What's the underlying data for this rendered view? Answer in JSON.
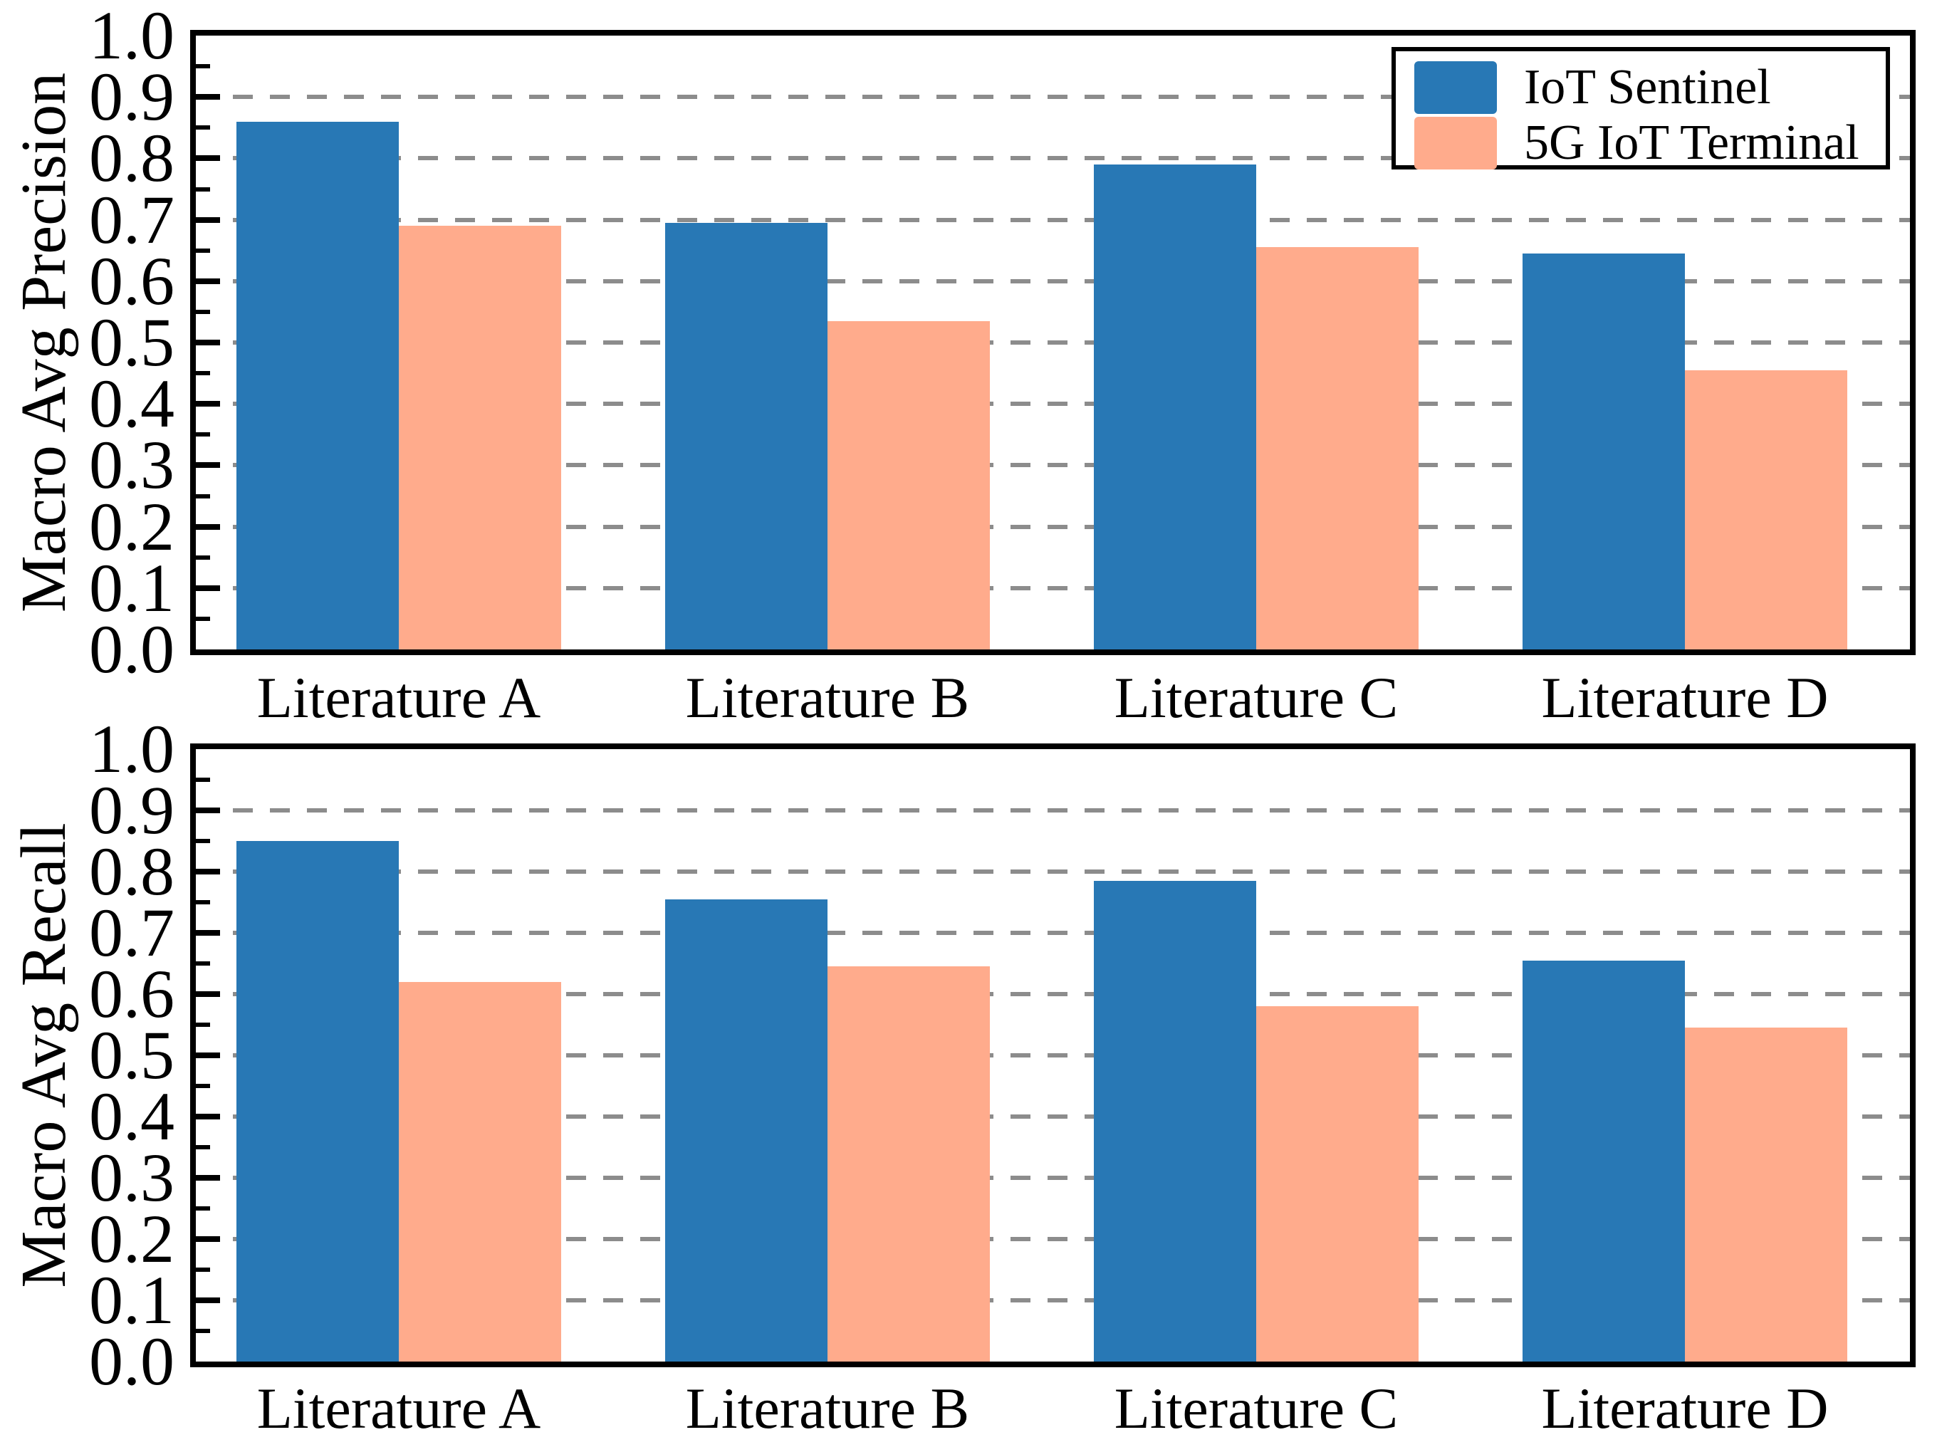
{
  "figure": {
    "background": "#ffffff",
    "frame_color": "#000000",
    "gridline_color": "#8c8c8c",
    "series_colors": [
      "#2878b5",
      "#ffab8c"
    ],
    "legend": {
      "position": "top-right-of-first-chart",
      "items": [
        {
          "label": "IoT Sentinel",
          "color": "#2878b5"
        },
        {
          "label": "5G IoT Terminal",
          "color": "#ffab8c"
        }
      ]
    }
  },
  "chart_data": [
    {
      "type": "bar",
      "title": "",
      "ylabel": "Macro Avg Precision",
      "xlabel": "",
      "categories": [
        "Literature A",
        "Literature B",
        "Literature C",
        "Literature D"
      ],
      "series": [
        {
          "name": "IoT Sentinel",
          "values": [
            0.86,
            0.695,
            0.79,
            0.645
          ]
        },
        {
          "name": "5G IoT Terminal",
          "values": [
            0.69,
            0.535,
            0.655,
            0.455
          ]
        }
      ],
      "ylim": [
        0.0,
        1.0
      ],
      "yticks": [
        "0.0",
        "0.1",
        "0.2",
        "0.3",
        "0.4",
        "0.5",
        "0.6",
        "0.7",
        "0.8",
        "0.9",
        "1.0"
      ],
      "minor_tick_step": 0.05,
      "grid": "horizontal-dashed",
      "legend_shown": true
    },
    {
      "type": "bar",
      "title": "",
      "ylabel": "Macro Avg Recall",
      "xlabel": "",
      "categories": [
        "Literature A",
        "Literature B",
        "Literature C",
        "Literature D"
      ],
      "series": [
        {
          "name": "IoT Sentinel",
          "values": [
            0.85,
            0.755,
            0.785,
            0.655
          ]
        },
        {
          "name": "5G IoT Terminal",
          "values": [
            0.62,
            0.645,
            0.58,
            0.545
          ]
        }
      ],
      "ylim": [
        0.0,
        1.0
      ],
      "yticks": [
        "0.0",
        "0.1",
        "0.2",
        "0.3",
        "0.4",
        "0.5",
        "0.6",
        "0.7",
        "0.8",
        "0.9",
        "1.0"
      ],
      "minor_tick_step": 0.05,
      "grid": "horizontal-dashed",
      "legend_shown": false
    }
  ]
}
